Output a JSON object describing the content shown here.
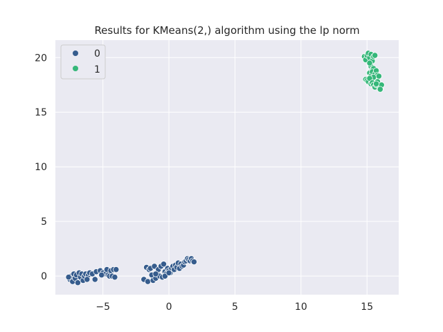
{
  "chart_data": {
    "type": "scatter",
    "title": "Results for KMeans(2,) algorithm using the lp norm",
    "xlabel": "",
    "ylabel": "",
    "xlim": [
      -8.6,
      17.4
    ],
    "ylim": [
      -1.7,
      21.6
    ],
    "xticks": [
      -5,
      0,
      5,
      10,
      15
    ],
    "yticks": [
      0,
      5,
      10,
      15,
      20
    ],
    "grid": true,
    "legend_position": "top-left",
    "series": [
      {
        "name": "0",
        "color": "#365c8d",
        "points": [
          [
            -7.5,
            -0.3
          ],
          [
            -7.4,
            0.0
          ],
          [
            -7.3,
            -0.5
          ],
          [
            -7.2,
            0.2
          ],
          [
            -7.1,
            -0.2
          ],
          [
            -7.0,
            0.1
          ],
          [
            -6.9,
            -0.6
          ],
          [
            -6.8,
            0.3
          ],
          [
            -6.7,
            -0.1
          ],
          [
            -6.6,
            0.2
          ],
          [
            -6.5,
            -0.4
          ],
          [
            -6.4,
            0.0
          ],
          [
            -6.3,
            0.2
          ],
          [
            -6.1,
            0.1
          ],
          [
            -6.0,
            0.3
          ],
          [
            -5.8,
            0.2
          ],
          [
            -5.6,
            -0.3
          ],
          [
            -5.5,
            0.4
          ],
          [
            -5.2,
            0.5
          ],
          [
            -5.0,
            0.3
          ],
          [
            -4.8,
            0.2
          ],
          [
            -4.7,
            0.6
          ],
          [
            -4.6,
            0.1
          ],
          [
            -4.5,
            0.0
          ],
          [
            -4.4,
            0.5
          ],
          [
            -4.3,
            0.0
          ],
          [
            -4.2,
            0.6
          ],
          [
            -4.1,
            -0.1
          ],
          [
            -4.0,
            0.6
          ],
          [
            -7.6,
            -0.1
          ],
          [
            -6.2,
            -0.3
          ],
          [
            -5.1,
            0.1
          ],
          [
            -1.9,
            -0.3
          ],
          [
            -1.7,
            0.8
          ],
          [
            -1.6,
            -0.5
          ],
          [
            -1.5,
            0.6
          ],
          [
            -1.4,
            0.7
          ],
          [
            -1.3,
            0.1
          ],
          [
            -1.2,
            -0.4
          ],
          [
            -1.1,
            0.9
          ],
          [
            -1.0,
            -0.2
          ],
          [
            -0.9,
            0.3
          ],
          [
            -0.8,
            0.6
          ],
          [
            -0.7,
            0.0
          ],
          [
            -0.6,
            0.9
          ],
          [
            -0.5,
            -0.1
          ],
          [
            -0.4,
            1.1
          ],
          [
            -0.3,
            0.4
          ],
          [
            -0.2,
            0.2
          ],
          [
            -0.1,
            0.7
          ],
          [
            0.0,
            0.5
          ],
          [
            0.1,
            0.3
          ],
          [
            0.2,
            0.7
          ],
          [
            0.3,
            0.9
          ],
          [
            0.4,
            0.6
          ],
          [
            0.5,
            1.0
          ],
          [
            0.6,
            0.8
          ],
          [
            0.7,
            1.2
          ],
          [
            0.8,
            0.7
          ],
          [
            0.9,
            1.1
          ],
          [
            1.0,
            0.9
          ],
          [
            1.1,
            1.0
          ],
          [
            1.2,
            1.3
          ],
          [
            1.3,
            1.4
          ],
          [
            1.4,
            1.6
          ],
          [
            1.5,
            1.5
          ],
          [
            1.6,
            1.4
          ],
          [
            1.7,
            1.6
          ],
          [
            1.8,
            1.4
          ],
          [
            1.9,
            1.3
          ],
          [
            -1.0,
            0.2
          ],
          [
            -0.3,
            0.0
          ],
          [
            0.0,
            0.3
          ]
        ]
      },
      {
        "name": "1",
        "color": "#35b779",
        "points": [
          [
            14.8,
            20.1
          ],
          [
            14.9,
            19.8
          ],
          [
            15.0,
            20.2
          ],
          [
            15.1,
            20.4
          ],
          [
            15.2,
            20.0
          ],
          [
            15.3,
            20.3
          ],
          [
            15.4,
            19.7
          ],
          [
            15.5,
            20.1
          ],
          [
            15.6,
            20.2
          ],
          [
            15.3,
            19.2
          ],
          [
            15.4,
            18.9
          ],
          [
            15.5,
            19.0
          ],
          [
            15.2,
            18.6
          ],
          [
            15.3,
            18.3
          ],
          [
            15.4,
            18.7
          ],
          [
            15.6,
            18.5
          ],
          [
            15.7,
            18.8
          ],
          [
            15.8,
            18.4
          ],
          [
            15.5,
            18.2
          ],
          [
            15.9,
            18.3
          ],
          [
            14.9,
            18.0
          ],
          [
            15.0,
            17.9
          ],
          [
            15.1,
            17.8
          ],
          [
            15.2,
            18.1
          ],
          [
            15.3,
            17.6
          ],
          [
            15.4,
            17.7
          ],
          [
            15.5,
            17.5
          ],
          [
            15.6,
            17.3
          ],
          [
            15.7,
            17.5
          ],
          [
            15.8,
            17.8
          ],
          [
            15.9,
            17.4
          ],
          [
            16.0,
            17.2
          ],
          [
            16.1,
            17.5
          ],
          [
            16.0,
            17.1
          ],
          [
            15.7,
            17.6
          ],
          [
            15.2,
            19.5
          ]
        ]
      }
    ]
  }
}
